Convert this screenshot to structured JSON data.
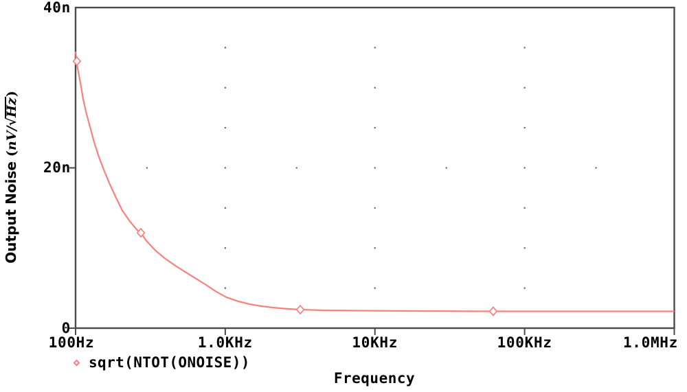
{
  "window": {
    "background": "#ffffff"
  },
  "colors": {
    "trace": "#f6817d",
    "axis": "#4a4a4a",
    "grid_dot": "#6a6a6a",
    "text": "#000000",
    "marker_fill": "#ffffff"
  },
  "legend": {
    "position": "bottom-left",
    "marker": "diamond-outline"
  },
  "axis": {
    "x_title": "Frequency",
    "y_title_plain": "Output Noise (nV/√Hz)",
    "y_title_parts": {
      "prefix": "Output Noise ",
      "open_paren": "(",
      "numerator": "nV",
      "slash": "/",
      "radical": "√",
      "under_radical": "Hz",
      "close_paren": ")"
    }
  },
  "chart_data": {
    "type": "line",
    "title": "",
    "xlabel": "Frequency",
    "ylabel": "Output Noise (nV/√Hz)",
    "x_scale": "log",
    "x_range_hz": [
      100,
      1000000
    ],
    "ylim": [
      0,
      40
    ],
    "y_unit": "nV/sqrt(Hz)",
    "grid_on": true,
    "legend_position": "bottom-left",
    "x_ticks": [
      {
        "f": 100,
        "label": "100Hz"
      },
      {
        "f": 1000,
        "label": "1.0KHz"
      },
      {
        "f": 10000,
        "label": "10KHz"
      },
      {
        "f": 100000,
        "label": "100KHz"
      },
      {
        "f": 1000000,
        "label": "1.0MHz"
      }
    ],
    "y_ticks": [
      {
        "v": 0,
        "label": "0",
        "tick": true
      },
      {
        "v": 20,
        "label": "20n",
        "tick": true
      },
      {
        "v": 40,
        "label": "40n",
        "tick": false
      }
    ],
    "grid": {
      "style": "dots",
      "x_major_hz": [
        1000,
        10000,
        100000
      ],
      "x_minor_hz": [
        300,
        3000,
        30000,
        300000
      ],
      "y_dot_levels_nv": [
        5,
        10,
        15,
        20,
        25,
        30,
        35
      ],
      "x_minor_dot_level_nv": 20
    },
    "series": [
      {
        "name": "sqrt(NTOT(ONOISE))",
        "color": "#f6817d",
        "points_f_hz_v_nv": [
          [
            100,
            34.5
          ],
          [
            103,
            32.5
          ],
          [
            108,
            30.5
          ],
          [
            112,
            28.7
          ],
          [
            118,
            26.8
          ],
          [
            125,
            25.1
          ],
          [
            133,
            23.2
          ],
          [
            143,
            21.4
          ],
          [
            154,
            19.8
          ],
          [
            168,
            18.1
          ],
          [
            185,
            16.4
          ],
          [
            205,
            14.7
          ],
          [
            231,
            13.3
          ],
          [
            259,
            12.2
          ],
          [
            273,
            11.9
          ],
          [
            297,
            10.9
          ],
          [
            341,
            9.7
          ],
          [
            395,
            8.7
          ],
          [
            463,
            7.8
          ],
          [
            542,
            7.0
          ],
          [
            634,
            6.2
          ],
          [
            744,
            5.4
          ],
          [
            872,
            4.55
          ],
          [
            1020,
            3.85
          ],
          [
            1220,
            3.35
          ],
          [
            1450,
            3.0
          ],
          [
            1740,
            2.75
          ],
          [
            2080,
            2.57
          ],
          [
            2460,
            2.44
          ],
          [
            3170,
            2.31
          ],
          [
            4500,
            2.23
          ],
          [
            7600,
            2.18
          ],
          [
            17800,
            2.14
          ],
          [
            61700,
            2.1
          ],
          [
            300000,
            2.1
          ],
          [
            1000000,
            2.1
          ]
        ],
        "markers_f_hz_v_nv": [
          [
            102,
            33.3
          ],
          [
            273,
            11.9
          ],
          [
            3170,
            2.31
          ],
          [
            61700,
            2.1
          ]
        ]
      }
    ]
  }
}
